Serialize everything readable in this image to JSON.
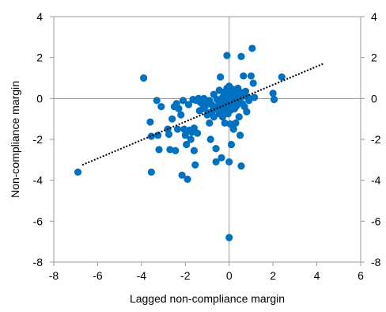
{
  "chart_data": {
    "type": "scatter",
    "title": "",
    "xlabel": "Lagged non-compliance margin",
    "ylabel": "Non-compliance margin",
    "xlim": [
      -8,
      6
    ],
    "ylim": [
      -8,
      4
    ],
    "x_ticks": [
      "-8",
      "-6",
      "-4",
      "-2",
      "0",
      "2",
      "4",
      "6"
    ],
    "y_ticks_left": [
      "4",
      "2",
      "0",
      "-2",
      "-4",
      "-6",
      "-8"
    ],
    "y_ticks_right": [
      "4",
      "2",
      "0",
      "-2",
      "-4",
      "-6",
      "-8"
    ],
    "grid": false,
    "zero_lines": true,
    "marker_color": "#0070C0",
    "trendline": {
      "style": "dotted",
      "color": "#000000",
      "x": [
        -6.7,
        4.3
      ],
      "y": [
        -3.25,
        1.7
      ]
    },
    "series": [
      {
        "points": [
          [
            -6.9,
            -3.6
          ],
          [
            -3.9,
            1.0
          ],
          [
            -3.6,
            -1.15
          ],
          [
            -3.55,
            -1.85
          ],
          [
            -3.55,
            -3.6
          ],
          [
            -3.3,
            -0.1
          ],
          [
            -3.25,
            -1.8
          ],
          [
            -3.2,
            -2.5
          ],
          [
            -3.1,
            -0.4
          ],
          [
            -2.8,
            -1.5
          ],
          [
            -2.75,
            -1.75
          ],
          [
            -2.7,
            -2.5
          ],
          [
            -2.6,
            -1.0
          ],
          [
            -2.5,
            -0.4
          ],
          [
            -2.45,
            -2.55
          ],
          [
            -2.4,
            -0.25
          ],
          [
            -2.35,
            -1.5
          ],
          [
            -2.3,
            -0.5
          ],
          [
            -2.2,
            -0.8
          ],
          [
            -2.15,
            -3.75
          ],
          [
            -2.1,
            -0.1
          ],
          [
            -2.05,
            -1.5
          ],
          [
            -2.0,
            -1.8
          ],
          [
            -1.95,
            -2.25
          ],
          [
            -1.9,
            -3.95
          ],
          [
            -1.85,
            -0.3
          ],
          [
            -1.8,
            -1.55
          ],
          [
            -1.75,
            -2.0
          ],
          [
            -1.7,
            -1.65
          ],
          [
            -1.65,
            -0.05
          ],
          [
            -1.6,
            -2.55
          ],
          [
            -1.6,
            -1.45
          ],
          [
            -1.55,
            -3.25
          ],
          [
            -1.5,
            -0.1
          ],
          [
            -1.45,
            -1.7
          ],
          [
            -1.4,
            0.0
          ],
          [
            -1.35,
            -0.6
          ],
          [
            -1.3,
            -0.2
          ],
          [
            -1.25,
            -0.15
          ],
          [
            -1.2,
            -0.5
          ],
          [
            -1.15,
            0.0
          ],
          [
            -1.1,
            -0.4
          ],
          [
            -1.05,
            -0.2
          ],
          [
            -1.0,
            -0.8
          ],
          [
            -0.95,
            -0.7
          ],
          [
            -0.9,
            -1.2
          ],
          [
            -0.9,
            -0.1
          ],
          [
            -0.85,
            -2.0
          ],
          [
            -0.8,
            -0.3
          ],
          [
            -0.75,
            -0.6
          ],
          [
            -0.7,
            0.2
          ],
          [
            -0.7,
            -0.9
          ],
          [
            -0.65,
            -0.5
          ],
          [
            -0.6,
            -2.45
          ],
          [
            -0.6,
            -3.1
          ],
          [
            -0.55,
            -0.05
          ],
          [
            -0.5,
            -0.35
          ],
          [
            -0.45,
            0.4
          ],
          [
            -0.45,
            -0.75
          ],
          [
            -0.4,
            -0.2
          ],
          [
            -0.4,
            1.05
          ],
          [
            -0.35,
            -0.5
          ],
          [
            -0.35,
            -2.9
          ],
          [
            -0.3,
            -0.9
          ],
          [
            -0.3,
            0.05
          ],
          [
            -0.25,
            0.3
          ],
          [
            -0.25,
            -0.25
          ],
          [
            -0.2,
            -1.2
          ],
          [
            -0.2,
            -0.6
          ],
          [
            -0.15,
            0.15
          ],
          [
            -0.15,
            -0.1
          ],
          [
            -0.1,
            2.1
          ],
          [
            -0.1,
            -0.4
          ],
          [
            -0.1,
            0.5
          ],
          [
            -0.05,
            0.25
          ],
          [
            -0.05,
            -0.75
          ],
          [
            0.0,
            0.6
          ],
          [
            0.0,
            0.0
          ],
          [
            0.0,
            -0.3
          ],
          [
            0.0,
            -3.1
          ],
          [
            0.0,
            -6.8
          ],
          [
            0.05,
            -1.25
          ],
          [
            0.05,
            0.35
          ],
          [
            0.1,
            -0.55
          ],
          [
            0.1,
            -2.25
          ],
          [
            0.1,
            0.1
          ],
          [
            0.15,
            0.45
          ],
          [
            0.15,
            -0.2
          ],
          [
            0.2,
            -0.05
          ],
          [
            0.2,
            -1.5
          ],
          [
            0.25,
            0.25
          ],
          [
            0.25,
            -0.5
          ],
          [
            0.3,
            0.0
          ],
          [
            0.3,
            -1.2
          ],
          [
            0.35,
            0.15
          ],
          [
            0.35,
            -0.35
          ],
          [
            0.4,
            0.5
          ],
          [
            0.45,
            -0.15
          ],
          [
            0.45,
            -0.9
          ],
          [
            0.5,
            0.3
          ],
          [
            0.5,
            -1.8
          ],
          [
            0.55,
            2.05
          ],
          [
            0.55,
            -3.3
          ],
          [
            0.6,
            -0.25
          ],
          [
            0.6,
            0.1
          ],
          [
            0.65,
            1.1
          ],
          [
            0.7,
            -0.4
          ],
          [
            0.75,
            0.35
          ],
          [
            0.8,
            -0.65
          ],
          [
            0.85,
            0.05
          ],
          [
            0.9,
            -0.1
          ],
          [
            1.0,
            1.1
          ],
          [
            1.05,
            2.45
          ],
          [
            1.1,
            0.75
          ],
          [
            1.15,
            0.05
          ],
          [
            2.0,
            0.25
          ],
          [
            2.05,
            -0.05
          ],
          [
            2.4,
            1.05
          ]
        ]
      }
    ]
  }
}
